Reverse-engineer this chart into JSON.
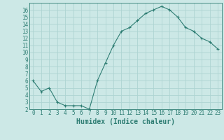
{
  "x": [
    0,
    1,
    2,
    3,
    4,
    5,
    6,
    7,
    8,
    9,
    10,
    11,
    12,
    13,
    14,
    15,
    16,
    17,
    18,
    19,
    20,
    21,
    22,
    23
  ],
  "y": [
    6,
    4.5,
    5,
    3,
    2.5,
    2.5,
    2.5,
    2,
    6,
    8.5,
    11,
    13,
    13.5,
    14.5,
    15.5,
    16,
    16.5,
    16,
    15,
    13.5,
    13,
    12,
    11.5,
    10.5
  ],
  "line_color": "#2e7d73",
  "marker": "+",
  "bg_color": "#cce8e6",
  "grid_color": "#aed4d2",
  "xlabel": "Humidex (Indice chaleur)",
  "ylim": [
    2,
    17
  ],
  "xlim": [
    -0.5,
    23.5
  ],
  "yticks": [
    2,
    3,
    4,
    5,
    6,
    7,
    8,
    9,
    10,
    11,
    12,
    13,
    14,
    15,
    16
  ],
  "xticks": [
    0,
    1,
    2,
    3,
    4,
    5,
    6,
    7,
    8,
    9,
    10,
    11,
    12,
    13,
    14,
    15,
    16,
    17,
    18,
    19,
    20,
    21,
    22,
    23
  ],
  "tick_color": "#2e7d73",
  "label_color": "#2e7d73",
  "font_size": 5.5,
  "label_font_size": 7
}
